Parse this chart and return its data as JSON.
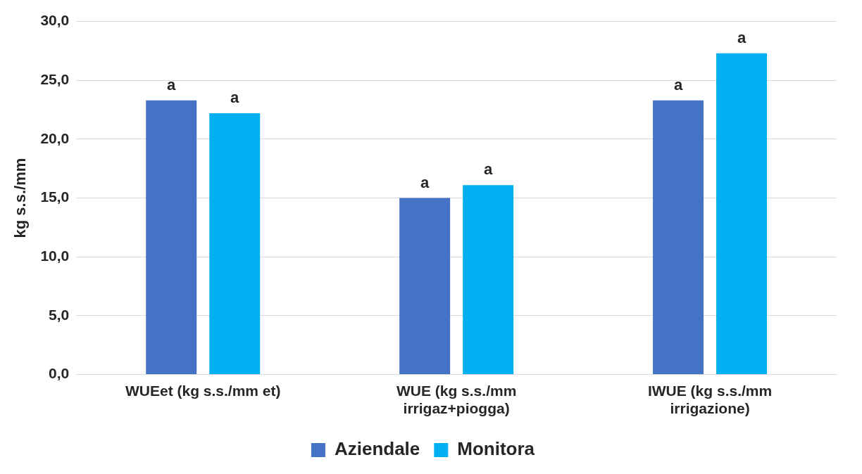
{
  "chart_data": {
    "type": "bar",
    "ylabel": "kg s.s./mm",
    "categories": [
      "WUEet (kg s.s./mm et)",
      "WUE (kg s.s./mm irrigaz+piogga)",
      "IWUE (kg s.s./mm irrigazione)"
    ],
    "series": [
      {
        "name": "Aziendale",
        "color": "#4472c4",
        "values": [
          23.3,
          15.0,
          23.3
        ],
        "value_labels": [
          "a",
          "a",
          "a"
        ]
      },
      {
        "name": "Monitora",
        "color": "#00b0f0",
        "values": [
          22.2,
          16.1,
          27.3
        ],
        "value_labels": [
          "a",
          "a",
          "a"
        ]
      }
    ],
    "ylim": [
      0,
      30
    ],
    "yticks": [
      {
        "value": 0,
        "label": "0,0"
      },
      {
        "value": 5,
        "label": "5,0"
      },
      {
        "value": 10,
        "label": "10,0"
      },
      {
        "value": 15,
        "label": "15,0"
      },
      {
        "value": 20,
        "label": "20,0"
      },
      {
        "value": 25,
        "label": "25,0"
      },
      {
        "value": 30,
        "label": "30,0"
      }
    ],
    "grid": "y",
    "legend": "bottom"
  }
}
